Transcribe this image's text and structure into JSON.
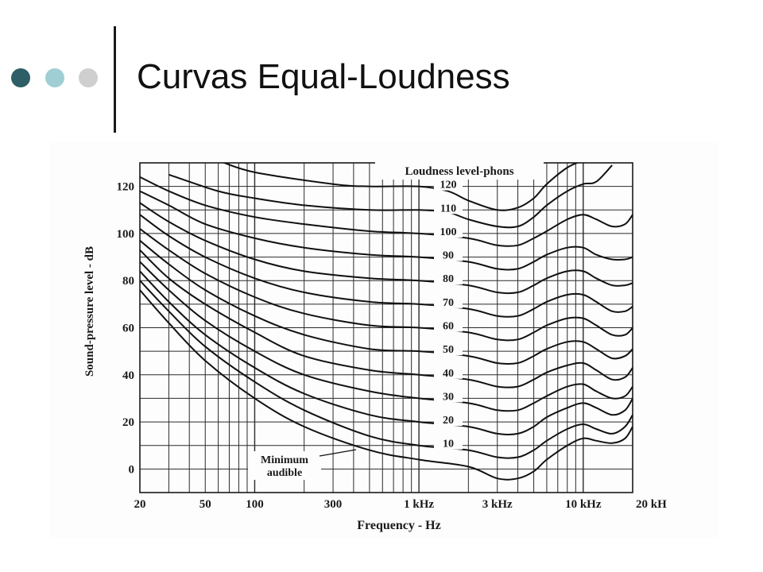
{
  "slide": {
    "title": "Curvas Equal-Loudness",
    "dot_colors": [
      "#2e5e66",
      "#9fcfd4",
      "#cfcfcf"
    ]
  },
  "chart_data": {
    "type": "line",
    "title": "",
    "xlabel": "Frequency - Hz",
    "ylabel": "Sound-pressure level - dB",
    "x_scale": "log",
    "xlim": [
      20,
      20000
    ],
    "ylim": [
      -10,
      130
    ],
    "grid": true,
    "legend_title": "Loudness level-phons",
    "x_ticks": [
      {
        "value": 20,
        "label": "20"
      },
      {
        "value": 50,
        "label": "50"
      },
      {
        "value": 100,
        "label": "100"
      },
      {
        "value": 300,
        "label": "300"
      },
      {
        "value": 1000,
        "label": "1 kHz"
      },
      {
        "value": 3000,
        "label": "3 kHz"
      },
      {
        "value": 10000,
        "label": "10 kHz"
      },
      {
        "value": 20000,
        "label": "20 kH"
      }
    ],
    "y_ticks": [
      {
        "value": 0,
        "label": "0"
      },
      {
        "value": 20,
        "label": "20"
      },
      {
        "value": 40,
        "label": "40"
      },
      {
        "value": 60,
        "label": "60"
      },
      {
        "value": 80,
        "label": "80"
      },
      {
        "value": 100,
        "label": "100"
      },
      {
        "value": 120,
        "label": "120"
      }
    ],
    "annotation": "Minimum\naudible",
    "series": [
      {
        "name": "120",
        "points": [
          [
            60,
            131
          ],
          [
            100,
            126
          ],
          [
            300,
            121
          ],
          [
            500,
            120
          ],
          [
            1000,
            120
          ],
          [
            1500,
            118
          ],
          [
            2000,
            114
          ],
          [
            3000,
            110
          ],
          [
            4000,
            111
          ],
          [
            5000,
            115
          ],
          [
            6000,
            121
          ],
          [
            8000,
            128
          ],
          [
            10000,
            131
          ]
        ]
      },
      {
        "name": "110",
        "points": [
          [
            30,
            125
          ],
          [
            60,
            118
          ],
          [
            100,
            115
          ],
          [
            200,
            112
          ],
          [
            500,
            110
          ],
          [
            1000,
            110
          ],
          [
            1500,
            109
          ],
          [
            2000,
            106
          ],
          [
            3000,
            103
          ],
          [
            4000,
            103
          ],
          [
            5000,
            107
          ],
          [
            6000,
            112
          ],
          [
            8000,
            118
          ],
          [
            10000,
            121
          ],
          [
            12000,
            122
          ],
          [
            15000,
            129
          ]
        ]
      },
      {
        "name": "100",
        "points": [
          [
            20,
            124
          ],
          [
            30,
            118
          ],
          [
            50,
            112
          ],
          [
            100,
            107
          ],
          [
            200,
            104
          ],
          [
            500,
            101
          ],
          [
            1000,
            100
          ],
          [
            2000,
            98
          ],
          [
            3000,
            95
          ],
          [
            4000,
            95
          ],
          [
            5000,
            98
          ],
          [
            6000,
            101
          ],
          [
            8000,
            106
          ],
          [
            10000,
            108
          ],
          [
            12000,
            106
          ],
          [
            15000,
            103
          ],
          [
            18000,
            104
          ],
          [
            20000,
            108
          ]
        ]
      },
      {
        "name": "90",
        "points": [
          [
            20,
            118
          ],
          [
            30,
            112
          ],
          [
            50,
            104
          ],
          [
            100,
            98
          ],
          [
            200,
            94
          ],
          [
            500,
            91
          ],
          [
            1000,
            90
          ],
          [
            2000,
            88
          ],
          [
            3000,
            85
          ],
          [
            4000,
            85
          ],
          [
            5000,
            88
          ],
          [
            6000,
            91
          ],
          [
            8000,
            94
          ],
          [
            10000,
            94
          ],
          [
            12000,
            91
          ],
          [
            15000,
            89
          ],
          [
            18000,
            89
          ],
          [
            20000,
            90
          ]
        ]
      },
      {
        "name": "80",
        "points": [
          [
            20,
            113
          ],
          [
            30,
            105
          ],
          [
            50,
            97
          ],
          [
            100,
            89
          ],
          [
            200,
            84
          ],
          [
            500,
            81
          ],
          [
            1000,
            80
          ],
          [
            2000,
            78
          ],
          [
            3000,
            75
          ],
          [
            4000,
            75
          ],
          [
            5000,
            78
          ],
          [
            6000,
            81
          ],
          [
            8000,
            84
          ],
          [
            10000,
            84
          ],
          [
            12000,
            81
          ],
          [
            15000,
            78
          ],
          [
            18000,
            78
          ],
          [
            20000,
            79
          ]
        ]
      },
      {
        "name": "70",
        "points": [
          [
            20,
            108
          ],
          [
            30,
            99
          ],
          [
            50,
            90
          ],
          [
            100,
            81
          ],
          [
            200,
            75
          ],
          [
            500,
            71
          ],
          [
            1000,
            70
          ],
          [
            2000,
            68
          ],
          [
            3000,
            65
          ],
          [
            4000,
            65
          ],
          [
            5000,
            68
          ],
          [
            6000,
            71
          ],
          [
            8000,
            74
          ],
          [
            10000,
            74
          ],
          [
            12000,
            71
          ],
          [
            15000,
            67
          ],
          [
            18000,
            67
          ],
          [
            20000,
            69
          ]
        ]
      },
      {
        "name": "60",
        "points": [
          [
            20,
            102
          ],
          [
            30,
            93
          ],
          [
            50,
            83
          ],
          [
            100,
            73
          ],
          [
            200,
            66
          ],
          [
            500,
            61
          ],
          [
            1000,
            60
          ],
          [
            2000,
            58
          ],
          [
            3000,
            55
          ],
          [
            4000,
            55
          ],
          [
            5000,
            58
          ],
          [
            6000,
            61
          ],
          [
            8000,
            64
          ],
          [
            10000,
            64
          ],
          [
            12000,
            61
          ],
          [
            15000,
            57
          ],
          [
            18000,
            57
          ],
          [
            20000,
            60
          ]
        ]
      },
      {
        "name": "50",
        "points": [
          [
            20,
            97
          ],
          [
            30,
            87
          ],
          [
            50,
            76
          ],
          [
            100,
            65
          ],
          [
            200,
            57
          ],
          [
            500,
            51
          ],
          [
            1000,
            50
          ],
          [
            2000,
            48
          ],
          [
            3000,
            45
          ],
          [
            4000,
            45
          ],
          [
            5000,
            48
          ],
          [
            6000,
            51
          ],
          [
            8000,
            54
          ],
          [
            10000,
            54
          ],
          [
            12000,
            51
          ],
          [
            15000,
            47
          ],
          [
            18000,
            48
          ],
          [
            20000,
            51
          ]
        ]
      },
      {
        "name": "40",
        "points": [
          [
            20,
            93
          ],
          [
            30,
            81
          ],
          [
            50,
            70
          ],
          [
            100,
            58
          ],
          [
            200,
            48
          ],
          [
            500,
            42
          ],
          [
            1000,
            40
          ],
          [
            2000,
            38
          ],
          [
            3000,
            35
          ],
          [
            4000,
            35
          ],
          [
            5000,
            38
          ],
          [
            6000,
            41
          ],
          [
            8000,
            44
          ],
          [
            10000,
            45
          ],
          [
            12000,
            42
          ],
          [
            15000,
            38
          ],
          [
            18000,
            39
          ],
          [
            20000,
            43
          ]
        ]
      },
      {
        "name": "30",
        "points": [
          [
            20,
            88
          ],
          [
            30,
            76
          ],
          [
            50,
            63
          ],
          [
            100,
            50
          ],
          [
            200,
            40
          ],
          [
            500,
            33
          ],
          [
            1000,
            30
          ],
          [
            2000,
            28
          ],
          [
            3000,
            25
          ],
          [
            4000,
            25
          ],
          [
            5000,
            28
          ],
          [
            6000,
            31
          ],
          [
            8000,
            35
          ],
          [
            10000,
            36
          ],
          [
            12000,
            33
          ],
          [
            15000,
            30
          ],
          [
            18000,
            31
          ],
          [
            20000,
            35
          ]
        ]
      },
      {
        "name": "20",
        "points": [
          [
            20,
            84
          ],
          [
            30,
            71
          ],
          [
            50,
            57
          ],
          [
            100,
            43
          ],
          [
            200,
            32
          ],
          [
            500,
            23
          ],
          [
            1000,
            20
          ],
          [
            2000,
            18
          ],
          [
            3000,
            15
          ],
          [
            4000,
            15
          ],
          [
            5000,
            18
          ],
          [
            6000,
            22
          ],
          [
            8000,
            26
          ],
          [
            10000,
            28
          ],
          [
            12000,
            26
          ],
          [
            15000,
            23
          ],
          [
            18000,
            25
          ],
          [
            20000,
            30
          ]
        ]
      },
      {
        "name": "10",
        "points": [
          [
            20,
            80
          ],
          [
            30,
            67
          ],
          [
            50,
            52
          ],
          [
            100,
            37
          ],
          [
            200,
            25
          ],
          [
            500,
            14
          ],
          [
            1000,
            10
          ],
          [
            2000,
            8
          ],
          [
            3000,
            5
          ],
          [
            4000,
            5
          ],
          [
            5000,
            8
          ],
          [
            6000,
            12
          ],
          [
            8000,
            17
          ],
          [
            10000,
            19
          ],
          [
            12000,
            17
          ],
          [
            15000,
            15
          ],
          [
            18000,
            18
          ],
          [
            20000,
            23
          ]
        ]
      },
      {
        "name": "Minimum audible",
        "points": [
          [
            20,
            76
          ],
          [
            30,
            62
          ],
          [
            50,
            46
          ],
          [
            100,
            30
          ],
          [
            200,
            18
          ],
          [
            500,
            8
          ],
          [
            1000,
            4
          ],
          [
            2000,
            1
          ],
          [
            3000,
            -4
          ],
          [
            4000,
            -4
          ],
          [
            5000,
            -1
          ],
          [
            6000,
            4
          ],
          [
            8000,
            10
          ],
          [
            10000,
            13
          ],
          [
            12000,
            12
          ],
          [
            15000,
            11
          ],
          [
            18000,
            13
          ],
          [
            20000,
            18
          ]
        ]
      }
    ]
  }
}
